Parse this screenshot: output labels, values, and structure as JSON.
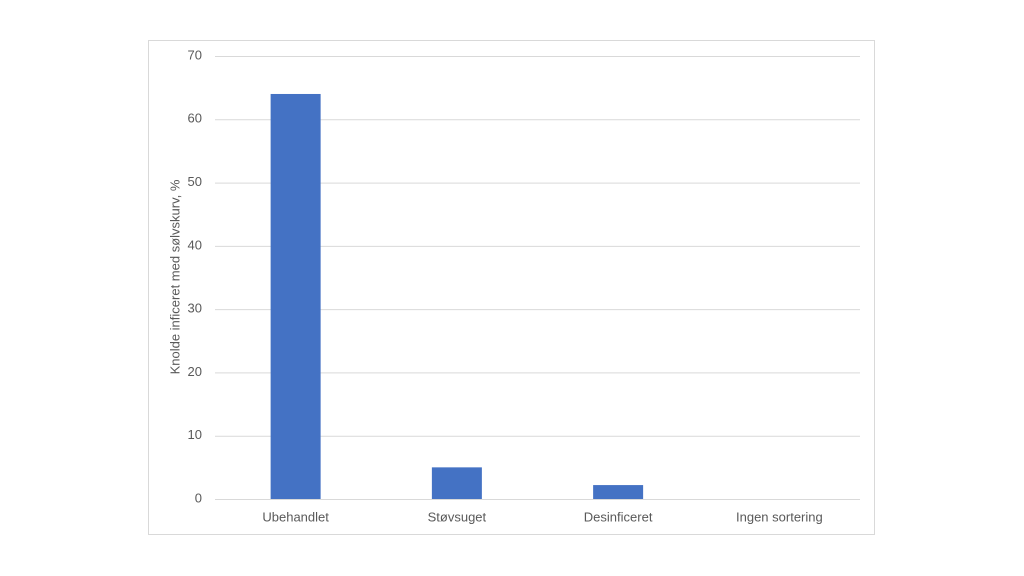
{
  "chart_data": {
    "type": "bar",
    "y_label": "Knolde inficeret med sølvskurv, %",
    "categories": [
      "Ubehandlet",
      "Støvsuget",
      "Desinficeret",
      "Ingen sortering"
    ],
    "values": [
      64,
      5,
      2.2,
      0
    ],
    "color": "#4472c4",
    "ylim": [
      0,
      70
    ],
    "yticks": [
      0,
      10,
      20,
      30,
      40,
      50,
      60,
      70
    ],
    "grid": true
  }
}
